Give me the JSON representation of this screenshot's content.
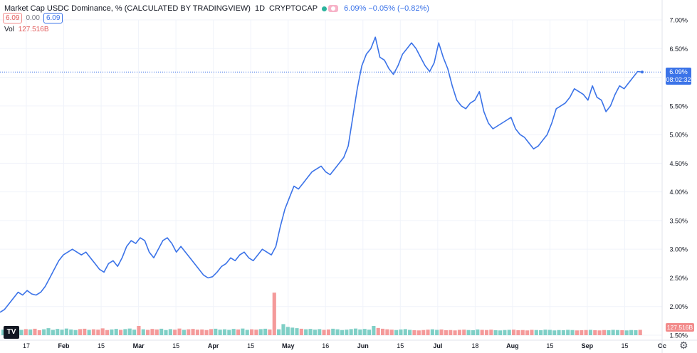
{
  "header": {
    "title": "Market Cap USDC Dominance, % (CALCULATED BY TRADINGVIEW)",
    "interval": "1D",
    "source": "CRYPTOCAP",
    "change": "6.09%  −0.05% (−0.82%)",
    "open_value": "6.09",
    "mid_value": "0.00",
    "close_value": "6.09",
    "vol_label": "Vol",
    "vol_value": "127.516B"
  },
  "price_tag": {
    "value": "6.09%",
    "countdown": "08:02:32"
  },
  "vol_tag": {
    "value": "127.516B"
  },
  "logo_text": "TV",
  "colors": {
    "line": "#3b73e8",
    "vol_up": "#7fcfc6",
    "vol_down": "#f49a9a",
    "grid": "#f0f3fa"
  },
  "chart_data": {
    "type": "line",
    "title": "Market Cap USDC Dominance, % (CALCULATED BY TRADINGVIEW)",
    "y_axis": {
      "min": 1.5,
      "max": 7.0,
      "ticks": [
        "7.00%",
        "6.50%",
        "6.00%",
        "5.50%",
        "5.00%",
        "4.50%",
        "4.00%",
        "3.50%",
        "3.00%",
        "2.50%",
        "2.00%",
        "1.50%"
      ]
    },
    "x_tick_labels": [
      "17",
      "Feb",
      "15",
      "Mar",
      "15",
      "Apr",
      "15",
      "May",
      "16",
      "Jun",
      "15",
      "Jul",
      "18",
      "Aug",
      "15",
      "Sep",
      "15",
      "Oc"
    ],
    "series": [
      {
        "values": [
          1.9,
          1.95,
          2.05,
          2.15,
          2.25,
          2.2,
          2.28,
          2.22,
          2.2,
          2.25,
          2.35,
          2.5,
          2.65,
          2.8,
          2.9,
          2.95,
          3.0,
          2.95,
          2.9,
          2.95,
          2.85,
          2.75,
          2.65,
          2.6,
          2.75,
          2.8,
          2.7,
          2.85,
          3.05,
          3.15,
          3.1,
          3.2,
          3.15,
          2.95,
          2.85,
          3.0,
          3.15,
          3.2,
          3.1,
          2.95,
          3.05,
          2.95,
          2.85,
          2.75,
          2.65,
          2.55,
          2.5,
          2.52,
          2.6,
          2.7,
          2.75,
          2.85,
          2.8,
          2.9,
          2.95,
          2.85,
          2.8,
          2.9,
          3.0,
          2.95,
          2.9,
          3.05,
          3.4,
          3.7,
          3.9,
          4.1,
          4.05,
          4.15,
          4.25,
          4.35,
          4.4,
          4.45,
          4.35,
          4.3,
          4.4,
          4.5,
          4.6,
          4.8,
          5.3,
          5.8,
          6.2,
          6.4,
          6.5,
          6.7,
          6.35,
          6.3,
          6.15,
          6.05,
          6.2,
          6.4,
          6.5,
          6.6,
          6.5,
          6.35,
          6.2,
          6.1,
          6.25,
          6.6,
          6.35,
          6.15,
          5.85,
          5.6,
          5.5,
          5.45,
          5.55,
          5.6,
          5.75,
          5.4,
          5.2,
          5.1,
          5.15,
          5.2,
          5.25,
          5.3,
          5.1,
          5.0,
          4.95,
          4.85,
          4.75,
          4.8,
          4.9,
          5.0,
          5.2,
          5.45,
          5.5,
          5.55,
          5.65,
          5.8,
          5.75,
          5.7,
          5.6,
          5.85,
          5.65,
          5.6,
          5.4,
          5.5,
          5.7,
          5.85,
          5.8,
          5.9,
          6.0,
          6.1,
          6.09
        ]
      }
    ],
    "volume": {
      "values": [
        3,
        3.4,
        2.8,
        3.6,
        2.9,
        3.3,
        3.1,
        3.5,
        2.7,
        3.2,
        3.8,
        2.9,
        3.4,
        3.0,
        3.6,
        3.1,
        2.8,
        3.3,
        3.5,
        2.9,
        3.2,
        3.0,
        3.7,
        2.8,
        3.1,
        3.4,
        2.9,
        3.3,
        3.6,
        3.0,
        5.0,
        3.2,
        2.9,
        3.4,
        3.1,
        3.5,
        2.8,
        3.3,
        3.0,
        3.6,
        2.9,
        3.2,
        3.4,
        3.0,
        3.1,
        2.8,
        3.3,
        3.5,
        3.0,
        3.2,
        2.9,
        3.4,
        3.1,
        3.6,
        2.9,
        3.2,
        3.0,
        3.3,
        3.5,
        3.1,
        23,
        3.2,
        6.0,
        4.5,
        4.1,
        3.8,
        3.5,
        3.2,
        3.4,
        3.0,
        3.3,
        2.9,
        3.1,
        3.5,
        3.2,
        2.8,
        3.0,
        3.3,
        3.6,
        3.1,
        3.4,
        3.0,
        5.0,
        3.9,
        3.5,
        3.2,
        3.0,
        2.8,
        3.1,
        3.3,
        2.9,
        2.7,
        2.6,
        2.8,
        3.0,
        3.2,
        2.9,
        3.1,
        2.7,
        2.8,
        2.6,
        2.9,
        3.0,
        2.8,
        2.7,
        3.1,
        2.9,
        2.8,
        3.0,
        2.7,
        2.6,
        2.8,
        2.9,
        3.0,
        2.7,
        2.8,
        2.6,
        2.9,
        2.8,
        2.7,
        3.0,
        2.9,
        2.6,
        2.8,
        2.7,
        2.9,
        2.8,
        2.6,
        2.7,
        2.8,
        2.9,
        2.7,
        2.6,
        2.8,
        2.7,
        2.9,
        2.8,
        2.7,
        2.6,
        2.8,
        2.7,
        2.9
      ]
    }
  }
}
